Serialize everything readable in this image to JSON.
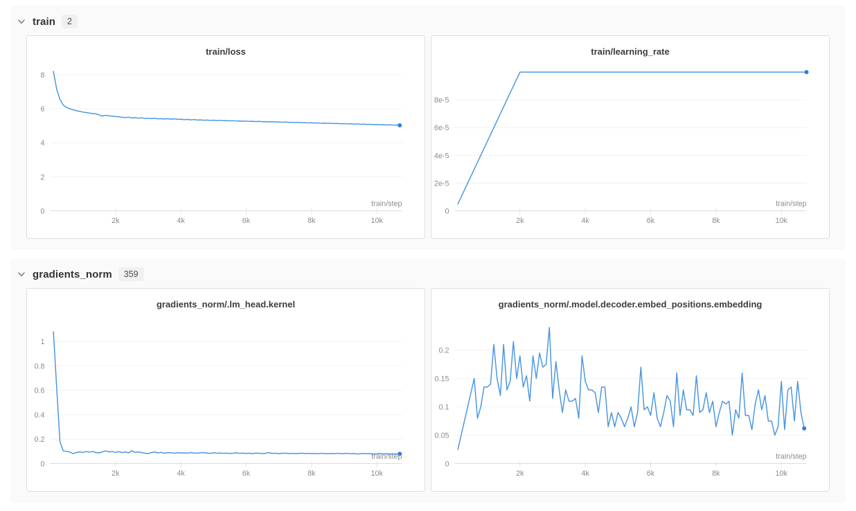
{
  "colors": {
    "line": "#4a96e0",
    "end_dot": "#2e7ed8",
    "grid": "#f0f0f0",
    "axis": "#dcdcdc",
    "tick": "#e3e3e3",
    "tick_text": "#8c8c8c",
    "section_bg": "#fafafa",
    "card_border": "#dedede"
  },
  "sections": [
    {
      "title": "train",
      "count": "2",
      "chart_indexes": [
        0,
        1
      ]
    },
    {
      "title": "gradients_norm",
      "count": "359",
      "chart_indexes": [
        2,
        3
      ]
    }
  ],
  "chart_data": [
    {
      "type": "line",
      "title": "train/loss",
      "xlabel": "train/step",
      "legend": [],
      "grid": true,
      "xlim": [
        0,
        10770
      ],
      "ylim": [
        0,
        8.4
      ],
      "xticks": [
        2000,
        4000,
        6000,
        8000,
        10000
      ],
      "xtick_labels": [
        "2k",
        "4k",
        "6k",
        "8k",
        "10k"
      ],
      "yticks": [
        0,
        2,
        4,
        6,
        8
      ],
      "ytick_labels": [
        "0",
        "2",
        "4",
        "6",
        "8"
      ],
      "x_start": 100,
      "x_step": 100,
      "end_dot": true,
      "y": [
        8.2,
        7.15,
        6.55,
        6.22,
        6.08,
        6.0,
        5.94,
        5.89,
        5.85,
        5.81,
        5.78,
        5.75,
        5.72,
        5.7,
        5.64,
        5.57,
        5.62,
        5.59,
        5.57,
        5.55,
        5.53,
        5.51,
        5.48,
        5.51,
        5.46,
        5.48,
        5.45,
        5.47,
        5.43,
        5.45,
        5.42,
        5.44,
        5.41,
        5.42,
        5.4,
        5.42,
        5.39,
        5.41,
        5.38,
        5.39,
        5.36,
        5.38,
        5.35,
        5.37,
        5.34,
        5.35,
        5.33,
        5.34,
        5.32,
        5.33,
        5.31,
        5.32,
        5.3,
        5.31,
        5.29,
        5.3,
        5.28,
        5.29,
        5.27,
        5.28,
        5.26,
        5.27,
        5.25,
        5.26,
        5.24,
        5.25,
        5.23,
        5.24,
        5.22,
        5.23,
        5.21,
        5.22,
        5.2,
        5.21,
        5.19,
        5.2,
        5.18,
        5.19,
        5.17,
        5.18,
        5.16,
        5.17,
        5.15,
        5.16,
        5.14,
        5.15,
        5.13,
        5.14,
        5.12,
        5.13,
        5.11,
        5.12,
        5.1,
        5.11,
        5.09,
        5.1,
        5.08,
        5.09,
        5.07,
        5.08,
        5.06,
        5.07,
        5.05,
        5.06,
        5.04,
        5.05,
        5.03
      ]
    },
    {
      "type": "line",
      "title": "train/learning_rate",
      "xlabel": "train/step",
      "legend": [],
      "grid": true,
      "xlim": [
        0,
        10770
      ],
      "ylim": [
        0,
        0.000103
      ],
      "xticks": [
        2000,
        4000,
        6000,
        8000,
        10000
      ],
      "xtick_labels": [
        "2k",
        "4k",
        "6k",
        "8k",
        "10k"
      ],
      "yticks": [
        0,
        2e-05,
        4e-05,
        6e-05,
        8e-05
      ],
      "ytick_labels": [
        "0",
        "2e-5",
        "4e-5",
        "6e-5",
        "8e-5"
      ],
      "end_dot": true,
      "x": [
        100,
        2000,
        10770
      ],
      "y": [
        5e-06,
        0.0001,
        0.0001
      ]
    },
    {
      "type": "line",
      "title": "gradients_norm/.lm_head.kernel",
      "xlabel": "train/step",
      "legend": [],
      "grid": true,
      "xlim": [
        0,
        10770
      ],
      "ylim": [
        0,
        1.17
      ],
      "xticks": [
        2000,
        4000,
        6000,
        8000,
        10000
      ],
      "xtick_labels": [
        "2k",
        "4k",
        "6k",
        "8k",
        "10k"
      ],
      "yticks": [
        0,
        0.2,
        0.4,
        0.6,
        0.8,
        1
      ],
      "ytick_labels": [
        "0",
        "0.2",
        "0.4",
        "0.6",
        "0.8",
        "1"
      ],
      "x_start": 100,
      "x_step": 100,
      "end_dot": true,
      "y": [
        1.08,
        0.62,
        0.18,
        0.105,
        0.1,
        0.095,
        0.082,
        0.09,
        0.096,
        0.092,
        0.098,
        0.094,
        0.1,
        0.09,
        0.088,
        0.095,
        0.105,
        0.095,
        0.1,
        0.092,
        0.098,
        0.09,
        0.095,
        0.088,
        0.105,
        0.092,
        0.096,
        0.09,
        0.085,
        0.082,
        0.09,
        0.095,
        0.088,
        0.092,
        0.085,
        0.09,
        0.088,
        0.085,
        0.09,
        0.086,
        0.088,
        0.085,
        0.09,
        0.087,
        0.085,
        0.088,
        0.09,
        0.086,
        0.084,
        0.088,
        0.085,
        0.087,
        0.084,
        0.086,
        0.083,
        0.085,
        0.088,
        0.084,
        0.086,
        0.083,
        0.085,
        0.082,
        0.086,
        0.084,
        0.082,
        0.085,
        0.09,
        0.083,
        0.085,
        0.082,
        0.084,
        0.086,
        0.082,
        0.084,
        0.081,
        0.083,
        0.085,
        0.082,
        0.084,
        0.081,
        0.083,
        0.08,
        0.084,
        0.082,
        0.08,
        0.083,
        0.081,
        0.084,
        0.08,
        0.082,
        0.084,
        0.08,
        0.082,
        0.079,
        0.081,
        0.083,
        0.08,
        0.082,
        0.078,
        0.08,
        0.082,
        0.079,
        0.081,
        0.078,
        0.08,
        0.079,
        0.08
      ]
    },
    {
      "type": "line",
      "title": "gradients_norm/.model.decoder.embed_positions.embedding",
      "xlabel": "train/step",
      "legend": [],
      "grid": true,
      "xlim": [
        0,
        10770
      ],
      "ylim": [
        0,
        0.252
      ],
      "xticks": [
        2000,
        4000,
        6000,
        8000,
        10000
      ],
      "xtick_labels": [
        "2k",
        "4k",
        "6k",
        "8k",
        "10k"
      ],
      "yticks": [
        0,
        0.05,
        0.1,
        0.15,
        0.2
      ],
      "ytick_labels": [
        "0",
        "0.05",
        "0.1",
        "0.15",
        "0.2"
      ],
      "x_start": 100,
      "x_step": 100,
      "end_dot": true,
      "y": [
        0.025,
        0.05,
        0.075,
        0.1,
        0.125,
        0.15,
        0.08,
        0.1,
        0.135,
        0.135,
        0.14,
        0.21,
        0.15,
        0.12,
        0.21,
        0.13,
        0.145,
        0.215,
        0.15,
        0.19,
        0.135,
        0.155,
        0.11,
        0.19,
        0.15,
        0.195,
        0.17,
        0.175,
        0.24,
        0.115,
        0.18,
        0.13,
        0.09,
        0.13,
        0.11,
        0.11,
        0.115,
        0.08,
        0.19,
        0.145,
        0.13,
        0.13,
        0.125,
        0.09,
        0.135,
        0.135,
        0.065,
        0.09,
        0.065,
        0.09,
        0.08,
        0.065,
        0.08,
        0.1,
        0.065,
        0.09,
        0.17,
        0.095,
        0.1,
        0.085,
        0.125,
        0.08,
        0.065,
        0.09,
        0.12,
        0.11,
        0.065,
        0.16,
        0.085,
        0.13,
        0.095,
        0.095,
        0.085,
        0.155,
        0.09,
        0.095,
        0.125,
        0.09,
        0.11,
        0.065,
        0.09,
        0.11,
        0.105,
        0.11,
        0.05,
        0.095,
        0.08,
        0.16,
        0.085,
        0.085,
        0.06,
        0.105,
        0.13,
        0.095,
        0.12,
        0.075,
        0.075,
        0.05,
        0.065,
        0.145,
        0.06,
        0.13,
        0.135,
        0.075,
        0.145,
        0.09,
        0.062
      ]
    }
  ]
}
